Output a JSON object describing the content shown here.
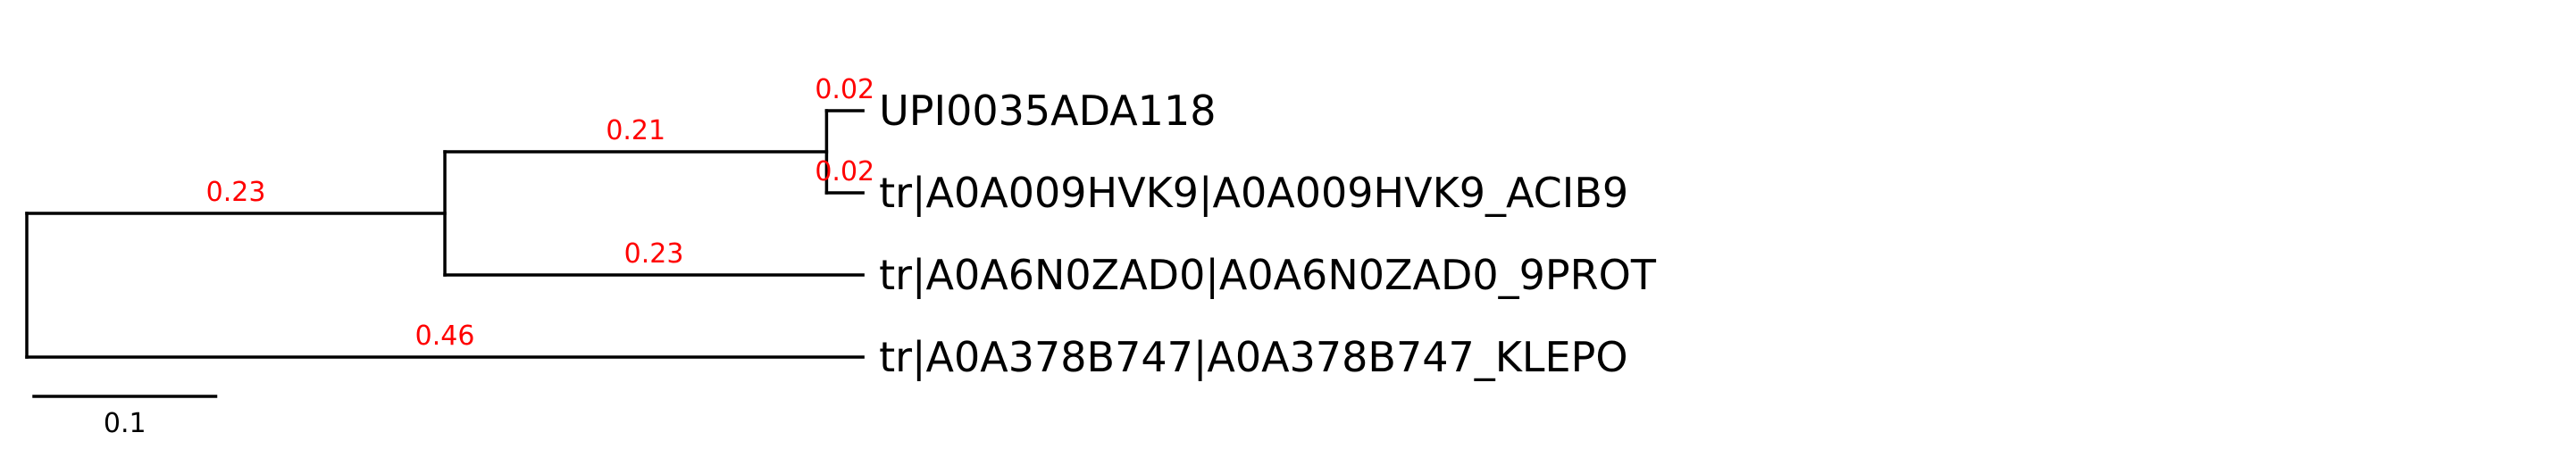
{
  "chart_data": {
    "type": "phylogenetic_tree",
    "colors": {
      "branch": "#000000",
      "branch_label": "#ff0000",
      "leaf_label": "#000000"
    },
    "tree": {
      "id": "root",
      "children": [
        {
          "id": "n1",
          "length": 0.23,
          "label": "0.23",
          "children": [
            {
              "id": "n2",
              "length": 0.21,
              "label": "0.21",
              "children": [
                {
                  "id": "leaf1",
                  "name": "UPI0035ADA118",
                  "length": 0.02,
                  "label": "0.02"
                },
                {
                  "id": "leaf2",
                  "name": "tr|A0A009HVK9|A0A009HVK9_ACIB9",
                  "length": 0.02,
                  "label": "0.02"
                }
              ]
            },
            {
              "id": "leaf3",
              "name": "tr|A0A6N0ZAD0|A0A6N0ZAD0_9PROT",
              "length": 0.23,
              "label": "0.23"
            }
          ]
        },
        {
          "id": "leaf4",
          "name": "tr|A0A378B747|A0A378B747_KLEPO",
          "length": 0.46,
          "label": "0.46"
        }
      ]
    },
    "scale_bar": {
      "length": 0.1,
      "label": "0.1"
    }
  }
}
